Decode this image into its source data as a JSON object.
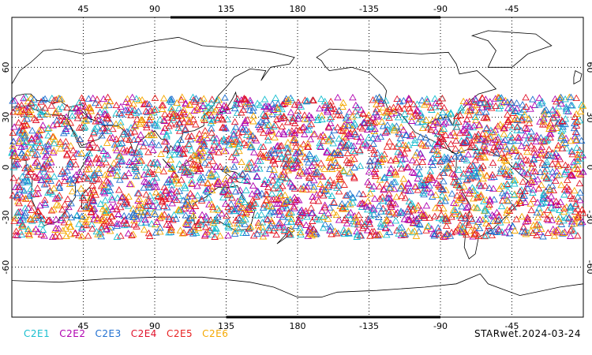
{
  "map": {
    "projection": "cylindrical-equidistant",
    "center_longitude": 180,
    "lon_range": [
      0,
      360
    ],
    "lat_range": [
      -90,
      90
    ],
    "top_ticks": [
      "45",
      "90",
      "135",
      "180",
      "-135",
      "-90",
      "-45"
    ],
    "bottom_ticks": [
      "45",
      "90",
      "135",
      "180",
      "-135",
      "-90",
      "-45"
    ],
    "left_ticks": [
      "60",
      "30",
      "0",
      "-30",
      "-60"
    ],
    "right_ticks": [
      "60",
      "30",
      "0",
      "-30",
      "-60"
    ],
    "grid": true,
    "marker": "open-triangle",
    "observation_band_lat": [
      -42,
      42
    ]
  },
  "legend": {
    "items": [
      {
        "label": "C2E1",
        "color": "#17becf"
      },
      {
        "label": "C2E2",
        "color": "#b000b0"
      },
      {
        "label": "C2E3",
        "color": "#1f6fd0"
      },
      {
        "label": "C2E4",
        "color": "#e0102a"
      },
      {
        "label": "C2E5",
        "color": "#e82020"
      },
      {
        "label": "C2E6",
        "color": "#f5a800"
      }
    ]
  },
  "footer": {
    "label": "STARwet.2024-03-24"
  }
}
